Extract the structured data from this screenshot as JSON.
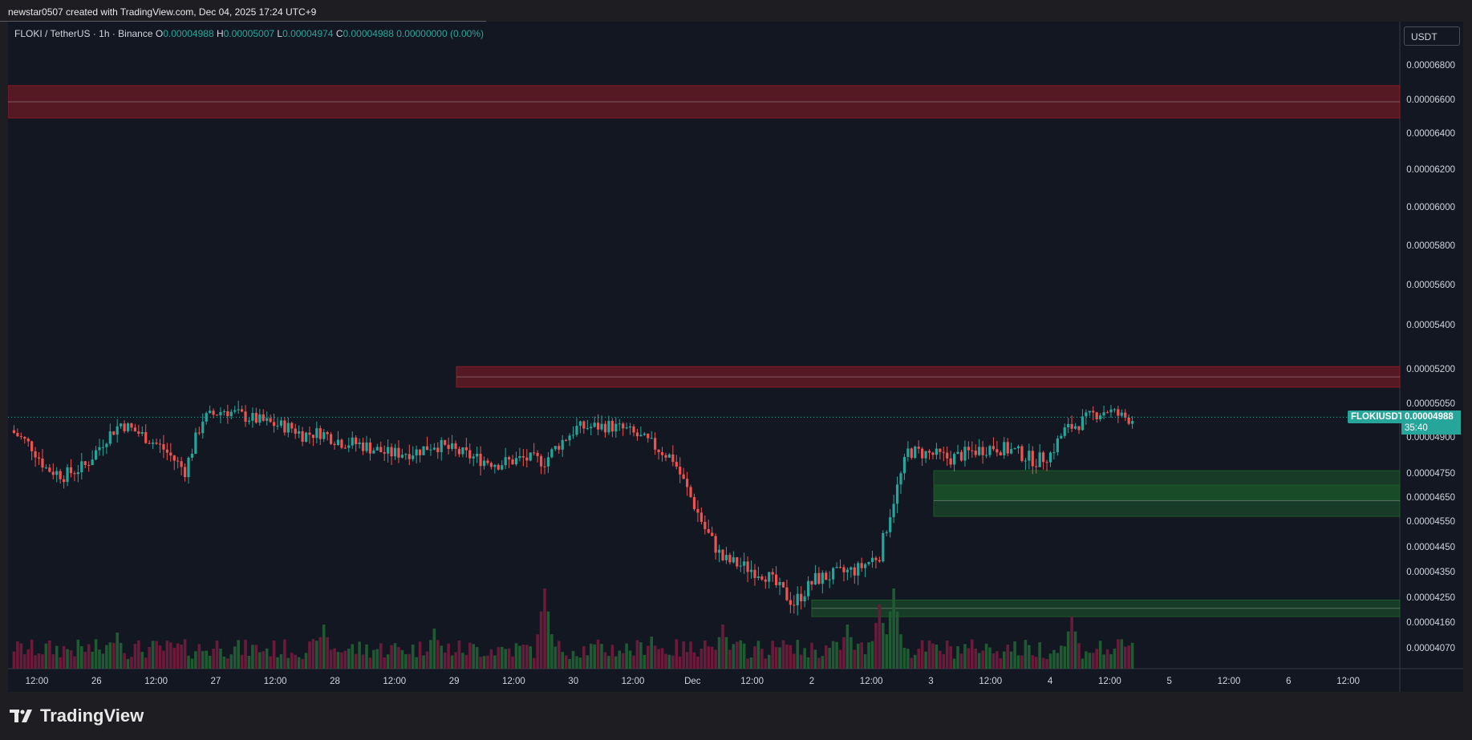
{
  "attribution": "newstar0507 created with TradingView.com, Dec 04, 2025 17:24 UTC+9",
  "legend": {
    "symbol": "FLOKI / TetherUS · 1h · Binance",
    "open_label": "O",
    "open": "0.00004988",
    "high_label": "H",
    "high": "0.00005007",
    "low_label": "L",
    "low": "0.00004974",
    "close_label": "C",
    "close": "0.00004988",
    "change": "0.00000000 (0.00%)"
  },
  "unit_label": "USDT",
  "last_price": {
    "symbol": "FLOKIUSDT",
    "value": "0.00004988",
    "countdown": "35:40"
  },
  "brand": "TradingView",
  "colors": {
    "up": "#26a69a",
    "down": "#ef5350",
    "vol_up": "#1f5a32",
    "vol_down": "#6b1a3a",
    "resistance": "#8b1c24",
    "support": "#1c5a2a"
  },
  "chart_data": {
    "type": "candlestick",
    "interval": "1h",
    "x_tick_labels": [
      "12:00",
      "26",
      "12:00",
      "27",
      "12:00",
      "28",
      "12:00",
      "29",
      "12:00",
      "30",
      "12:00",
      "Dec",
      "12:00",
      "2",
      "12:00",
      "3",
      "12:00",
      "4",
      "12:00",
      "5",
      "12:00",
      "6",
      "12:00"
    ],
    "y_tick_labels": [
      "0.00006800",
      "0.00006600",
      "0.00006400",
      "0.00006200",
      "0.00006000",
      "0.00005800",
      "0.00005600",
      "0.00005400",
      "0.00005200",
      "0.00005050",
      "0.00004900",
      "0.00004750",
      "0.00004650",
      "0.00004550",
      "0.00004450",
      "0.00004350",
      "0.00004250",
      "0.00004160",
      "0.00004070"
    ],
    "y_tick_values": [
      6.8e-05,
      6.6e-05,
      6.4e-05,
      6.2e-05,
      6e-05,
      5.8e-05,
      5.6e-05,
      5.4e-05,
      5.2e-05,
      5.05e-05,
      4.9e-05,
      4.75e-05,
      4.65e-05,
      4.55e-05,
      4.45e-05,
      4.35e-05,
      4.25e-05,
      4.16e-05,
      4.07e-05
    ],
    "last_price": 4.988e-05,
    "zones": [
      {
        "type": "resistance",
        "from": 6.49e-05,
        "to": 6.68e-05
      },
      {
        "type": "resistance",
        "from": 5.12e-05,
        "to": 5.21e-05
      },
      {
        "type": "support",
        "from": 4.64e-05,
        "to": 4.76e-05
      },
      {
        "type": "support",
        "from": 4.57e-05,
        "to": 4.7e-05
      },
      {
        "type": "support",
        "from": 4.18e-05,
        "to": 4.24e-05
      }
    ],
    "close_path": [
      [
        0,
        4.93e-05
      ],
      [
        12,
        4.86e-05
      ],
      [
        20,
        4.77e-05
      ],
      [
        30,
        4.74e-05
      ],
      [
        42,
        4.78e-05
      ],
      [
        54,
        4.9e-05
      ],
      [
        62,
        4.96e-05
      ],
      [
        76,
        4.9e-05
      ],
      [
        86,
        4.85e-05
      ],
      [
        98,
        4.76e-05
      ],
      [
        108,
        4.98e-05
      ],
      [
        120,
        5.02e-05
      ],
      [
        132,
        4.99e-05
      ],
      [
        146,
        4.96e-05
      ],
      [
        158,
        4.94e-05
      ],
      [
        164,
        4.91e-05
      ],
      [
        174,
        4.92e-05
      ],
      [
        186,
        4.88e-05
      ],
      [
        196,
        4.87e-05
      ],
      [
        212,
        4.83e-05
      ],
      [
        228,
        4.84e-05
      ],
      [
        238,
        4.87e-05
      ],
      [
        250,
        4.84e-05
      ],
      [
        262,
        4.81e-05
      ],
      [
        274,
        4.79e-05
      ],
      [
        288,
        4.81e-05
      ],
      [
        300,
        4.8e-05
      ],
      [
        308,
        4.87e-05
      ],
      [
        318,
        4.94e-05
      ],
      [
        336,
        4.95e-05
      ],
      [
        346,
        4.93e-05
      ],
      [
        362,
        4.86e-05
      ],
      [
        372,
        4.81e-05
      ],
      [
        390,
        4.52e-05
      ],
      [
        400,
        4.4e-05
      ],
      [
        412,
        4.37e-05
      ],
      [
        424,
        4.34e-05
      ],
      [
        432,
        4.28e-05
      ],
      [
        440,
        4.23e-05
      ],
      [
        452,
        4.32e-05
      ],
      [
        464,
        4.34e-05
      ],
      [
        476,
        4.36e-05
      ],
      [
        488,
        4.42e-05
      ],
      [
        496,
        4.64e-05
      ],
      [
        504,
        4.84e-05
      ],
      [
        516,
        4.83e-05
      ],
      [
        528,
        4.81e-05
      ],
      [
        540,
        4.84e-05
      ],
      [
        552,
        4.86e-05
      ],
      [
        564,
        4.84e-05
      ],
      [
        576,
        4.8e-05
      ],
      [
        584,
        4.83e-05
      ],
      [
        592,
        4.93e-05
      ],
      [
        600,
        4.96e-05
      ],
      [
        608,
        5e-05
      ],
      [
        616,
        5.02e-05
      ],
      [
        624,
        4.99e-05
      ],
      [
        630,
        4.98e-05
      ]
    ],
    "volume_peaks": [
      [
        0,
        0.3
      ],
      [
        60,
        0.45
      ],
      [
        116,
        0.35
      ],
      [
        176,
        0.55
      ],
      [
        238,
        0.5
      ],
      [
        300,
        1.0
      ],
      [
        360,
        0.4
      ],
      [
        390,
        0.35
      ],
      [
        400,
        0.55
      ],
      [
        436,
        0.3
      ],
      [
        470,
        0.55
      ],
      [
        488,
        0.8
      ],
      [
        496,
        1.0
      ],
      [
        540,
        0.35
      ],
      [
        560,
        0.3
      ],
      [
        596,
        0.65
      ],
      [
        620,
        0.25
      ]
    ]
  }
}
